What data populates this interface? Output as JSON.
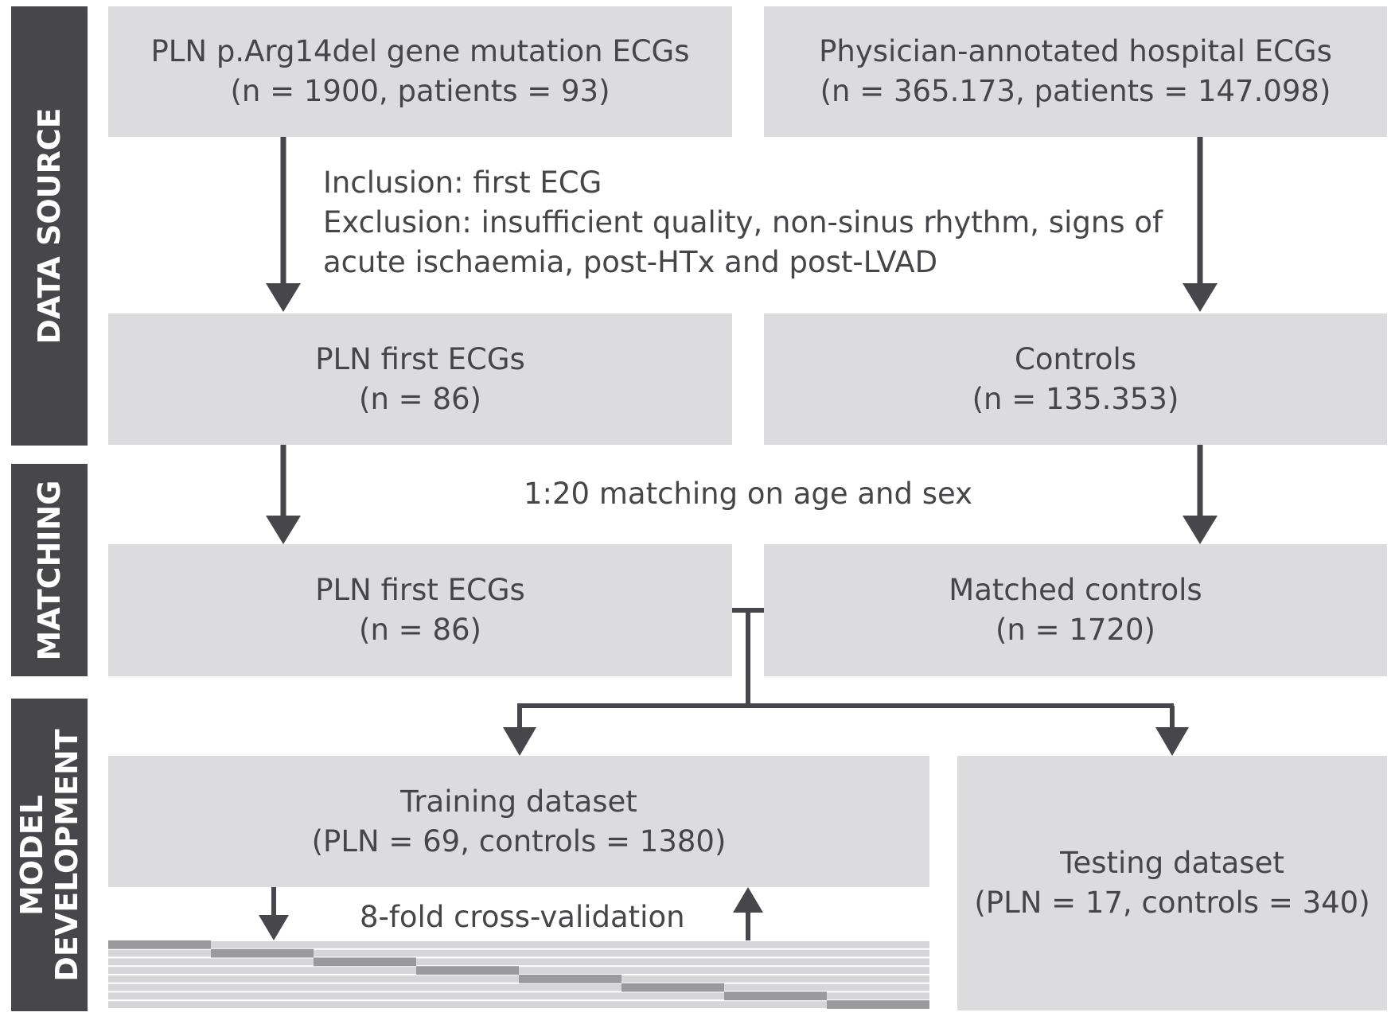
{
  "sections": {
    "data_source": "DATA SOURCE",
    "matching": "MATCHING",
    "model_development_line1": "MODEL",
    "model_development_line2": "DEVELOPMENT"
  },
  "boxes": {
    "pln_mutation": {
      "line1": "PLN p.Arg14del gene mutation ECGs",
      "line2": "(n = 1900, patients = 93)"
    },
    "hospital_ecgs": {
      "line1": "Physician-annotated hospital ECGs",
      "line2": "(n = 365.173, patients = 147.098)"
    },
    "pln_first_1": {
      "line1": "PLN first ECGs",
      "line2": "(n = 86)"
    },
    "controls": {
      "line1": "Controls",
      "line2": "(n = 135.353)"
    },
    "pln_first_2": {
      "line1": "PLN first ECGs",
      "line2": "(n = 86)"
    },
    "matched_controls": {
      "line1": "Matched controls",
      "line2": "(n = 1720)"
    },
    "training": {
      "line1": "Training dataset",
      "line2": "(PLN = 69, controls = 1380)"
    },
    "testing": {
      "line1": "Testing dataset",
      "line2": "(PLN = 17, controls = 340)"
    }
  },
  "notes": {
    "inclusion": "Inclusion: first ECG",
    "exclusion_line1": "Exclusion: insufficient quality, non-sinus rhythm, signs of",
    "exclusion_line2": "acute ischaemia, post-HTx and post-LVAD",
    "matching": "1:20 matching on age and sex",
    "cross_validation": "8-fold cross-validation"
  },
  "colors": {
    "section_bar": "#47474b",
    "box_fill": "#dcdcde",
    "arrow": "#47474b",
    "text": "#46464a",
    "fold_light": "#d6d6d8",
    "fold_dark": "#9a9a9c"
  },
  "cross_validation_folds": 8
}
